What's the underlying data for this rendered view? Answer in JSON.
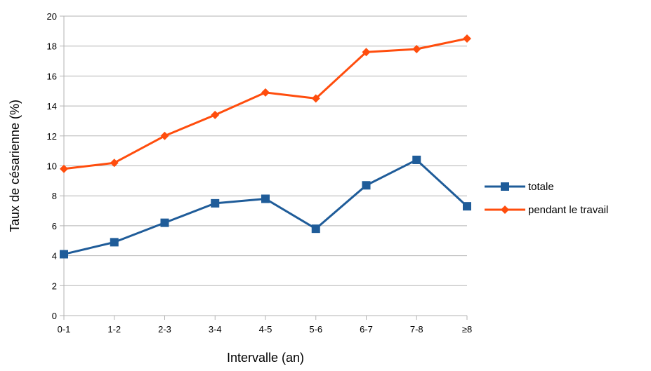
{
  "chart_data": {
    "type": "line",
    "title": "",
    "xlabel": "Intervalle (an)",
    "ylabel": "Taux de césarienne (%)",
    "categories": [
      "0-1",
      "1-2",
      "2-3",
      "3-4",
      "4-5",
      "5-6",
      "6-7",
      "7-8",
      "≥8"
    ],
    "ylim": [
      0,
      20
    ],
    "yticks": [
      0,
      2,
      4,
      6,
      8,
      10,
      12,
      14,
      16,
      18,
      20
    ],
    "grid": true,
    "legend_position": "right",
    "series": [
      {
        "name": "totale",
        "color": "#1F5C99",
        "marker": "square",
        "values": [
          4.1,
          4.9,
          6.2,
          7.5,
          7.8,
          5.8,
          8.7,
          10.4,
          7.3
        ]
      },
      {
        "name": "pendant le travail",
        "color": "#FF4D0D",
        "marker": "diamond",
        "values": [
          9.8,
          10.2,
          12.0,
          13.4,
          14.9,
          14.5,
          17.6,
          17.8,
          18.5
        ]
      }
    ]
  }
}
